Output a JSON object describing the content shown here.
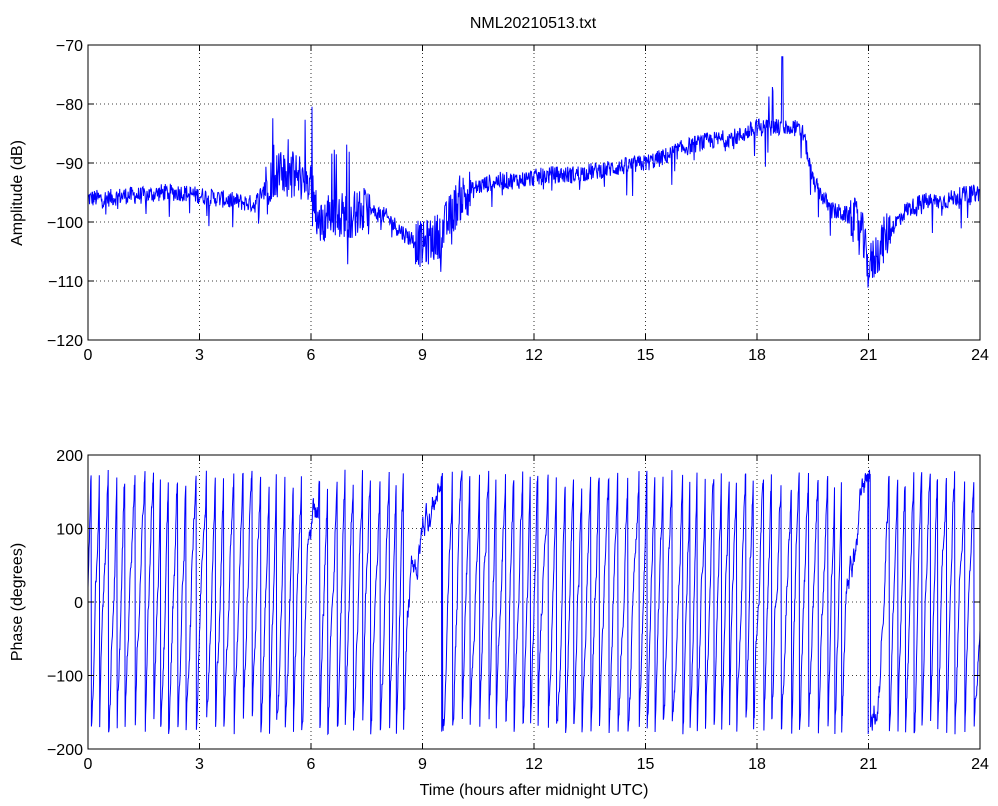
{
  "figure_title": "NML20210513.txt",
  "chart_data": [
    {
      "type": "line",
      "ylabel": "Amplitude (dB)",
      "xlabel": "",
      "xlim": [
        0,
        24
      ],
      "ylim": [
        -120,
        -70
      ],
      "xticks": [
        0,
        3,
        6,
        9,
        12,
        15,
        18,
        21,
        24
      ],
      "yticks": [
        -70,
        -80,
        -90,
        -100,
        -110,
        -120
      ],
      "ytick_labels": [
        "−70",
        "−80",
        "−90",
        "−100",
        "−110",
        "−120"
      ],
      "grid": "dotted",
      "series_color": "#0000ff",
      "x": [
        0,
        0.5,
        1,
        1.5,
        2,
        2.5,
        3,
        3.5,
        4,
        4.5,
        4.75,
        5,
        5.5,
        6,
        6.25,
        6.5,
        7,
        7.5,
        8,
        8.5,
        9,
        9.5,
        10,
        10.5,
        11,
        11.5,
        12,
        12.5,
        13,
        13.5,
        14,
        14.5,
        15,
        15.5,
        16,
        16.5,
        17,
        17.5,
        18,
        18.5,
        19,
        19.25,
        19.5,
        20,
        20.5,
        20.8,
        21,
        21.5,
        22,
        22.5,
        23,
        23.5,
        24
      ],
      "y": [
        -96,
        -96,
        -95.5,
        -95.5,
        -95,
        -95,
        -95.5,
        -96,
        -96.5,
        -97,
        -94,
        -92,
        -92,
        -93,
        -101,
        -98,
        -99,
        -98,
        -99,
        -102,
        -104,
        -102,
        -96,
        -94,
        -93,
        -93,
        -92.5,
        -92,
        -92,
        -91.5,
        -91,
        -90.5,
        -90,
        -89,
        -87.5,
        -86.5,
        -86,
        -85.5,
        -84,
        -84,
        -84,
        -85,
        -93,
        -98,
        -99,
        -101,
        -108,
        -102,
        -98,
        -96.5,
        -96.5,
        -95.5,
        -95
      ]
    },
    {
      "type": "line",
      "ylabel": "Phase (degrees)",
      "xlabel": "Time (hours after midnight UTC)",
      "xlim": [
        0,
        24
      ],
      "ylim": [
        -200,
        200
      ],
      "xticks": [
        0,
        3,
        6,
        9,
        12,
        15,
        18,
        21,
        24
      ],
      "yticks": [
        200,
        100,
        0,
        -100,
        -200
      ],
      "ytick_labels": [
        "200",
        "100",
        "0",
        "−100",
        "−200"
      ],
      "grid": "dotted",
      "series_color": "#0000ff",
      "phase_range": [
        -180,
        180
      ],
      "x": [
        0,
        24
      ],
      "y": [
        0,
        0
      ]
    }
  ]
}
